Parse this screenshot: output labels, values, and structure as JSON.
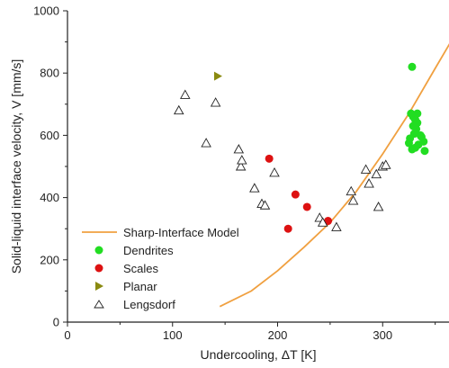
{
  "chart_data": {
    "type": "scatter",
    "xlabel": "Undercooling, ΔT [K]",
    "ylabel": "Solid-liquid interface velocity, V [mm/s]",
    "xlim": [
      0,
      370
    ],
    "ylim": [
      0,
      1000
    ],
    "xticks": [
      0,
      100,
      200,
      300
    ],
    "yticks": [
      0,
      200,
      400,
      600,
      800,
      1000
    ],
    "grid": false,
    "legend_position": "bottom-left",
    "colors": {
      "model": "#f0a040",
      "dendrites": "#22dd22",
      "scales": "#dd1111",
      "planar": "#8a8a10",
      "lengsdorf": "#222222"
    },
    "series": [
      {
        "name": "Sharp-Interface Model",
        "kind": "line",
        "x": [
          145,
          175,
          200,
          225,
          250,
          275,
          300,
          325,
          350,
          370
        ],
        "y": [
          50,
          100,
          165,
          240,
          320,
          420,
          540,
          670,
          815,
          930
        ]
      },
      {
        "name": "Dendrites",
        "kind": "circle",
        "x": [
          328,
          327,
          329,
          331,
          333,
          332,
          330,
          326,
          325,
          328,
          331,
          334,
          337,
          339,
          340,
          336,
          333,
          329
        ],
        "y": [
          820,
          670,
          660,
          650,
          670,
          620,
          605,
          590,
          575,
          555,
          560,
          570,
          595,
          580,
          550,
          600,
          640,
          630
        ]
      },
      {
        "name": "Scales",
        "kind": "circle",
        "x": [
          192,
          217,
          228,
          210,
          248
        ],
        "y": [
          525,
          410,
          370,
          300,
          325
        ]
      },
      {
        "name": "Planar",
        "kind": "triangle-right",
        "x": [
          143
        ],
        "y": [
          790
        ]
      },
      {
        "name": "Lengsdorf",
        "kind": "triangle-up-open",
        "x": [
          106,
          112,
          141,
          132,
          163,
          165,
          166,
          178,
          185,
          188,
          197,
          240,
          243,
          256,
          272,
          270,
          284,
          287,
          294,
          300,
          296,
          303
        ],
        "y": [
          680,
          730,
          705,
          575,
          555,
          500,
          520,
          430,
          380,
          375,
          480,
          335,
          320,
          305,
          390,
          420,
          490,
          445,
          475,
          500,
          370,
          505
        ]
      }
    ]
  }
}
